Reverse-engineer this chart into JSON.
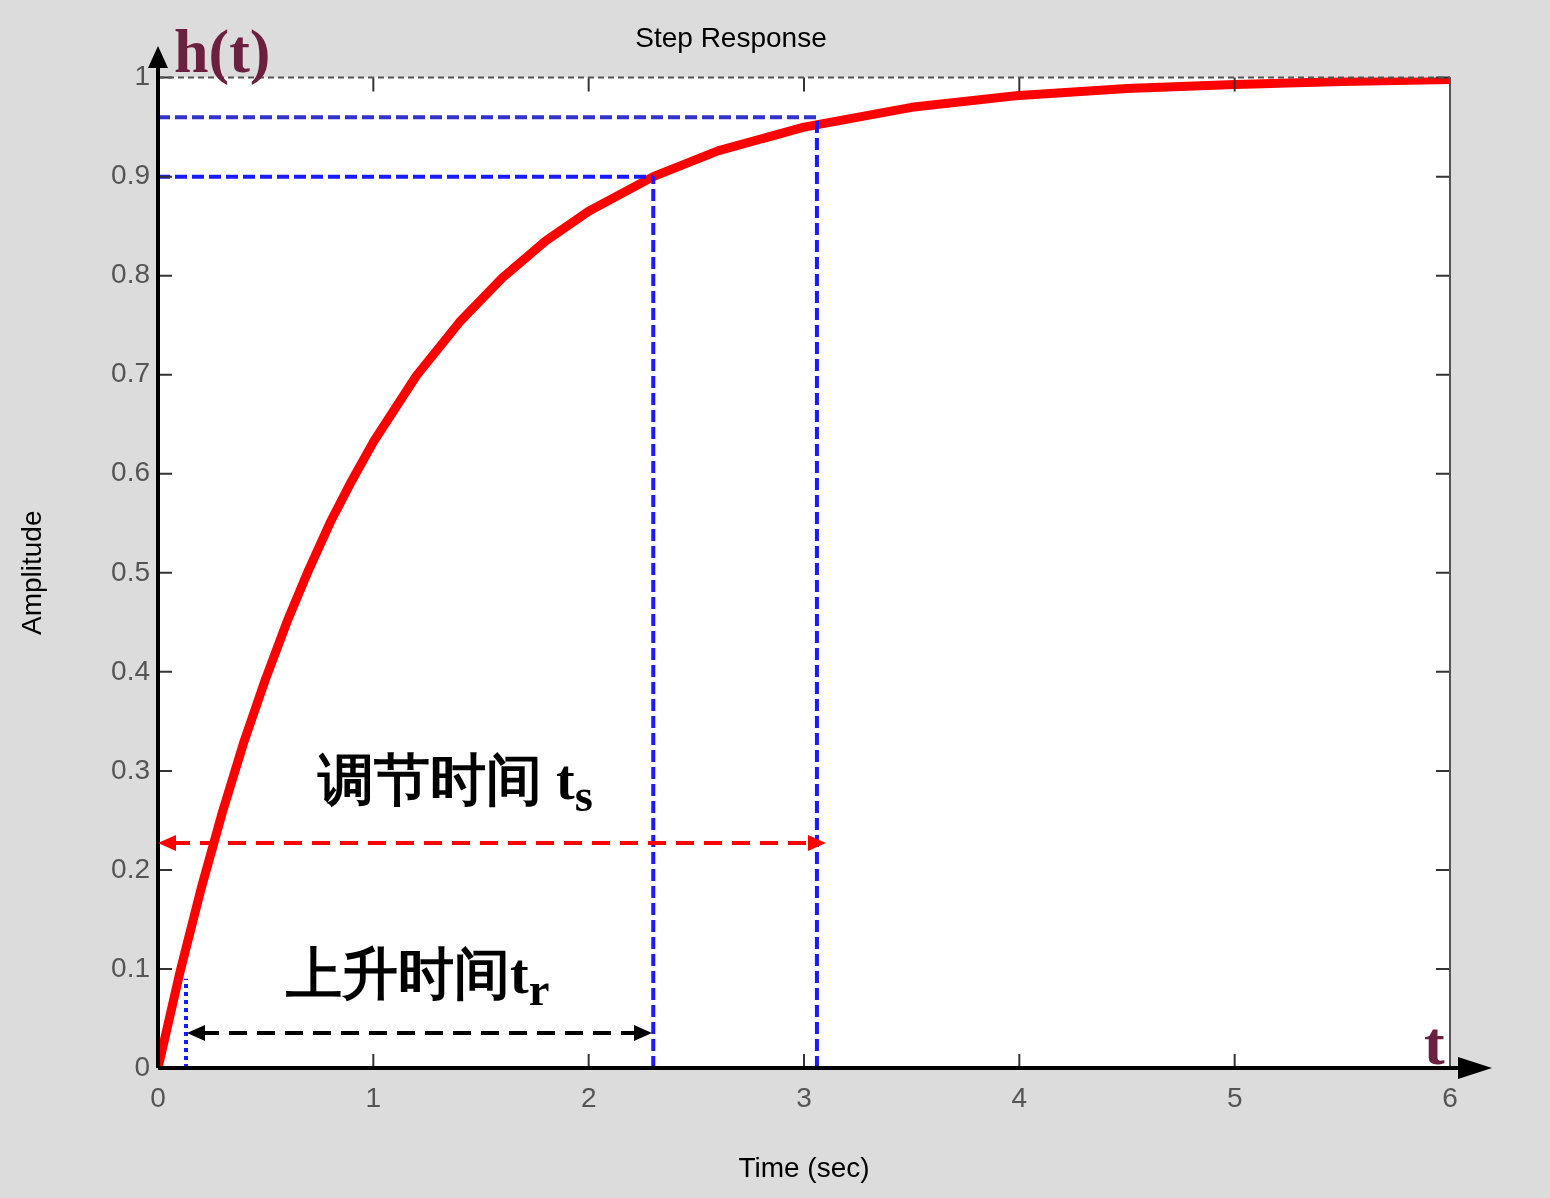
{
  "chart_data": {
    "type": "line",
    "title": "Step Response",
    "xlabel": "Time (sec)",
    "ylabel": "Amplitude",
    "annotations": [
      "h(t)",
      "t",
      "调节时间 t$_{s}$",
      "上升时间t$_{r}$"
    ],
    "xlim": [
      0,
      6
    ],
    "xticks": [
      0,
      1,
      2,
      3,
      4,
      5,
      6
    ],
    "ylim": [
      0,
      1
    ],
    "yticks": [
      0,
      0.1,
      0.2,
      0.3,
      0.4,
      0.5,
      0.6,
      0.7,
      0.8,
      0.9,
      1
    ],
    "grid": false,
    "legend": false,
    "marker": "none",
    "series": [
      {
        "color": "#ff0000",
        "line_style": "solid",
        "x": [
          0,
          0.1,
          0.2,
          0.3,
          0.4,
          0.5,
          0.6,
          0.7,
          0.8,
          0.9,
          1.0,
          1.2,
          1.4,
          1.6,
          1.8,
          2.0,
          2.3,
          2.6,
          3.0,
          3.5,
          4.0,
          4.5,
          5.0,
          5.5,
          6.0
        ],
        "values": [
          0,
          0.095,
          0.181,
          0.259,
          0.33,
          0.393,
          0.451,
          0.503,
          0.551,
          0.593,
          0.632,
          0.699,
          0.753,
          0.798,
          0.835,
          0.865,
          0.9,
          0.926,
          0.95,
          0.97,
          0.982,
          0.989,
          0.993,
          0.996,
          0.998
        ]
      },
      {
        "color": "#1a1aff",
        "line_style": "dashed",
        "x": [
          0,
          2.3
        ],
        "values": [
          0.9,
          0.9
        ]
      },
      {
        "color": "#1a1aff",
        "line_style": "dashed",
        "x": [
          2.3,
          2.3
        ],
        "values": [
          0,
          0.9
        ]
      },
      {
        "color": "#3333cc",
        "line_style": "dashed",
        "x": [
          0,
          3.06
        ],
        "values": [
          0.96,
          0.96
        ]
      },
      {
        "color": "#1a1aff",
        "line_style": "dashed",
        "x": [
          3.06,
          3.06
        ],
        "values": [
          0,
          0.96
        ]
      },
      {
        "color": "#1a1aff",
        "line_style": "dotted",
        "x": [
          0.13,
          0.13
        ],
        "values": [
          0,
          0.09
        ]
      }
    ]
  }
}
